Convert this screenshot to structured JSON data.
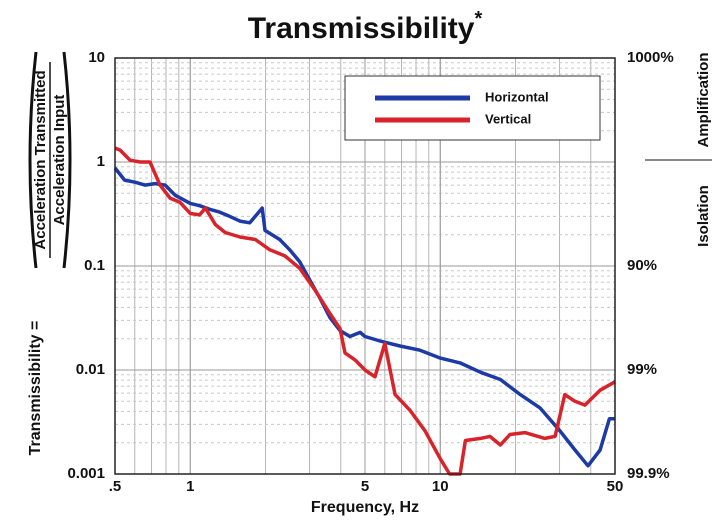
{
  "chart_data": {
    "type": "line",
    "title": "Transmissibility",
    "title_marker": "*",
    "xlabel": "Frequency, Hz",
    "ylabel": "Transmissibility =",
    "ylabel_numerator": "Acceleration Transmitted",
    "ylabel_denominator": "Acceleration Input",
    "y2labels": [
      "Amplification",
      "Isolation"
    ],
    "xscale": "log",
    "yscale": "log",
    "grid": true,
    "legend": "upper right",
    "xlim": [
      0.5,
      50
    ],
    "ylim": [
      0.001,
      10
    ],
    "xticks": [
      {
        "value": 0.5,
        "label": ".5"
      },
      1,
      5,
      10,
      50
    ],
    "yticks": [
      0.001,
      0.01,
      0.1,
      1,
      10
    ],
    "y2lim": [
      0.001,
      10
    ],
    "y2ticks": [
      {
        "value": 10,
        "label": "1000%"
      },
      {
        "value": 0.1,
        "label": "90%"
      },
      {
        "value": 0.01,
        "label": "99%"
      },
      {
        "value": 0.001,
        "label": "99.9%"
      }
    ],
    "series": [
      {
        "name": "Horizontal",
        "color": "#1d3aa6",
        "x": [
          0.5,
          0.546,
          0.601,
          0.659,
          0.723,
          0.794,
          0.87,
          1.0,
          1.09,
          1.2,
          1.31,
          1.44,
          1.58,
          1.73,
          1.94,
          1.99,
          2.28,
          2.5,
          2.74,
          3.0,
          3.3,
          3.62,
          3.97,
          4.35,
          4.78,
          5.0,
          5.74,
          6.9,
          8.3,
          10,
          12,
          14.5,
          17.4,
          20.9,
          25.1,
          30.1,
          34.6,
          39.0,
          43.6,
          47.5,
          50
        ],
        "values": [
          0.875,
          0.67,
          0.64,
          0.6,
          0.62,
          0.6,
          0.48,
          0.4,
          0.38,
          0.35,
          0.33,
          0.3,
          0.27,
          0.26,
          0.36,
          0.22,
          0.18,
          0.143,
          0.11,
          0.074,
          0.049,
          0.032,
          0.024,
          0.021,
          0.023,
          0.021,
          0.019,
          0.017,
          0.0155,
          0.013,
          0.0117,
          0.0095,
          0.0081,
          0.0058,
          0.0043,
          0.0026,
          0.0017,
          0.0012,
          0.0017,
          0.0034,
          0.0034
        ]
      },
      {
        "name": "Vertical",
        "color": "#d8232a",
        "x": [
          0.5,
          0.524,
          0.574,
          0.63,
          0.69,
          0.757,
          0.83,
          0.91,
          1.0,
          1.09,
          1.15,
          1.26,
          1.38,
          1.58,
          1.82,
          2.08,
          2.39,
          2.74,
          3.15,
          3.62,
          3.97,
          4.16,
          4.56,
          5.0,
          5.48,
          6.0,
          6.6,
          7.57,
          8.69,
          10,
          10.9,
          12.0,
          12.6,
          14.5,
          15.8,
          17.4,
          19.0,
          21.8,
          26.2,
          28.8,
          31.5,
          34.6,
          37.9,
          43.6,
          50
        ],
        "values": [
          1.36,
          1.3,
          1.04,
          1.0,
          1.0,
          0.6,
          0.45,
          0.41,
          0.32,
          0.31,
          0.36,
          0.25,
          0.21,
          0.19,
          0.18,
          0.143,
          0.125,
          0.095,
          0.059,
          0.035,
          0.025,
          0.0146,
          0.0125,
          0.01,
          0.0086,
          0.018,
          0.0058,
          0.0041,
          0.0026,
          0.0014,
          0.001,
          0.001,
          0.0021,
          0.0022,
          0.0023,
          0.0019,
          0.0024,
          0.0025,
          0.0022,
          0.0023,
          0.0058,
          0.005,
          0.0046,
          0.0064,
          0.0077
        ]
      }
    ]
  }
}
